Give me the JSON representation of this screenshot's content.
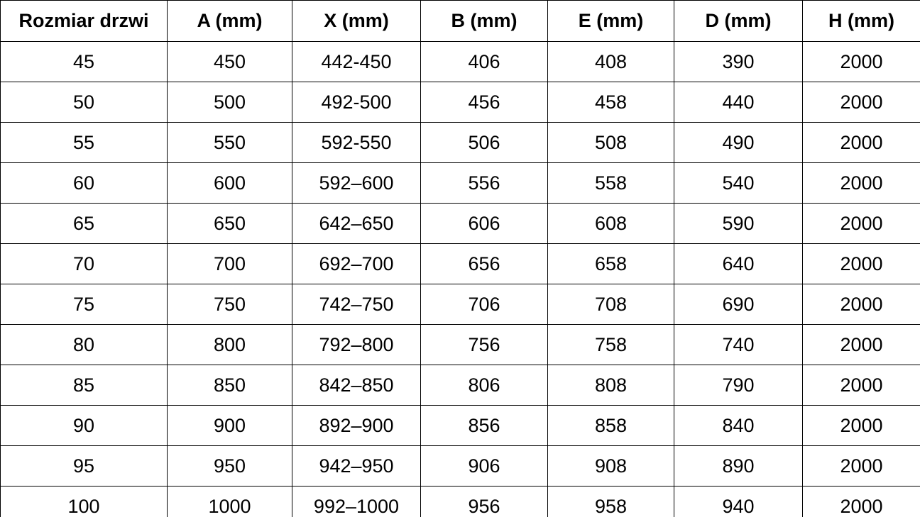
{
  "table": {
    "columns": [
      "Rozmiar drzwi",
      "A (mm)",
      "X (mm)",
      "B (mm)",
      "E (mm)",
      "D (mm)",
      "H (mm)"
    ],
    "rows": [
      [
        "45",
        "450",
        "442-450",
        "406",
        "408",
        "390",
        "2000"
      ],
      [
        "50",
        "500",
        "492-500",
        "456",
        "458",
        "440",
        "2000"
      ],
      [
        "55",
        "550",
        "592-550",
        "506",
        "508",
        "490",
        "2000"
      ],
      [
        "60",
        "600",
        "592–600",
        "556",
        "558",
        "540",
        "2000"
      ],
      [
        "65",
        "650",
        "642–650",
        "606",
        "608",
        "590",
        "2000"
      ],
      [
        "70",
        "700",
        "692–700",
        "656",
        "658",
        "640",
        "2000"
      ],
      [
        "75",
        "750",
        "742–750",
        "706",
        "708",
        "690",
        "2000"
      ],
      [
        "80",
        "800",
        "792–800",
        "756",
        "758",
        "740",
        "2000"
      ],
      [
        "85",
        "850",
        "842–850",
        "806",
        "808",
        "790",
        "2000"
      ],
      [
        "90",
        "900",
        "892–900",
        "856",
        "858",
        "840",
        "2000"
      ],
      [
        "95",
        "950",
        "942–950",
        "906",
        "908",
        "890",
        "2000"
      ],
      [
        "100",
        "1000",
        "992–1000",
        "956",
        "958",
        "940",
        "2000"
      ]
    ]
  },
  "colors": {
    "border": "#000000",
    "text": "#000000",
    "background": "#ffffff"
  }
}
